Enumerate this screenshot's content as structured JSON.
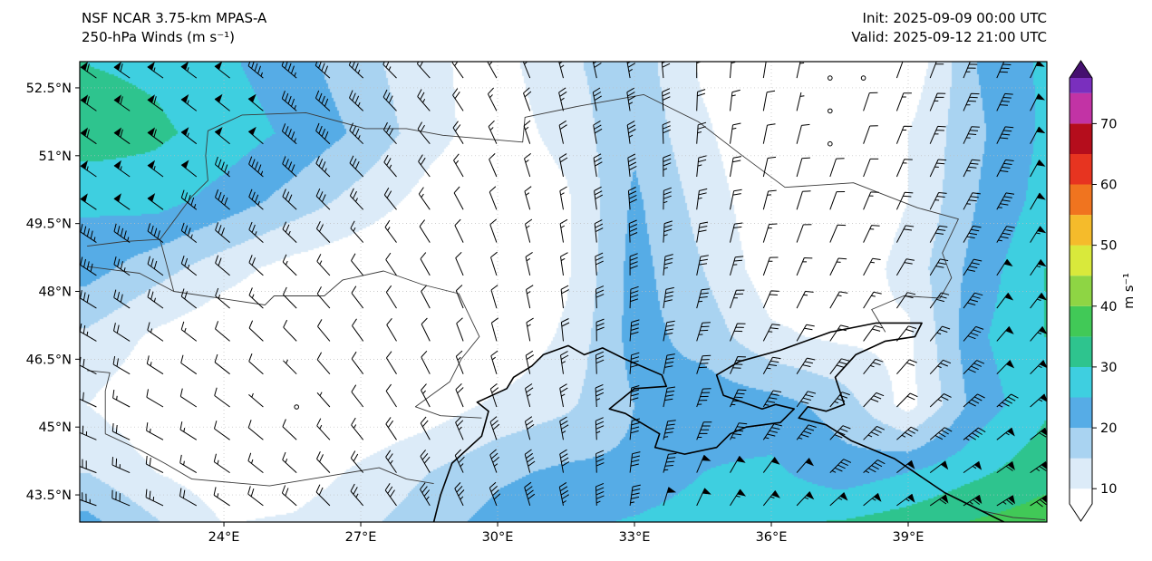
{
  "header": {
    "title_line1": "NSF NCAR 3.75-km MPAS-A",
    "title_line2": "250-hPa Winds (m s⁻¹)",
    "init_label": "Init: 2025-09-09 00:00 UTC",
    "valid_label": "Valid: 2025-09-12 21:00 UTC"
  },
  "axes": {
    "lon_range": [
      20.84,
      42.04
    ],
    "lat_range": [
      42.9,
      53.08
    ],
    "x_ticks": [
      {
        "v": 24,
        "label": "24°E"
      },
      {
        "v": 27,
        "label": "27°E"
      },
      {
        "v": 30,
        "label": "30°E"
      },
      {
        "v": 33,
        "label": "33°E"
      },
      {
        "v": 36,
        "label": "36°E"
      },
      {
        "v": 39,
        "label": "39°E"
      }
    ],
    "y_ticks": [
      {
        "v": 52.5,
        "label": "52.5°N"
      },
      {
        "v": 51,
        "label": "51°N"
      },
      {
        "v": 49.5,
        "label": "49.5°N"
      },
      {
        "v": 48,
        "label": "48°N"
      },
      {
        "v": 46.5,
        "label": "46.5°N"
      },
      {
        "v": 45,
        "label": "45°N"
      },
      {
        "v": 43.5,
        "label": "43.5°N"
      }
    ]
  },
  "colorbar": {
    "label": "m s⁻¹",
    "ticks": [
      10,
      20,
      30,
      40,
      50,
      60,
      70
    ],
    "value_range": [
      7.5,
      77.5
    ],
    "bands": [
      [
        7.5,
        10,
        "#ffffff"
      ],
      [
        10,
        15,
        "#dcebf8"
      ],
      [
        15,
        20,
        "#a9d3f1"
      ],
      [
        20,
        25,
        "#56ace6"
      ],
      [
        25,
        30,
        "#3ecfe0"
      ],
      [
        30,
        35,
        "#2ec48e"
      ],
      [
        35,
        40,
        "#41c957"
      ],
      [
        40,
        45,
        "#8ed544"
      ],
      [
        45,
        50,
        "#d9e93b"
      ],
      [
        50,
        55,
        "#f5bb2b"
      ],
      [
        55,
        60,
        "#f0741f"
      ],
      [
        60,
        65,
        "#e73420"
      ],
      [
        65,
        70,
        "#b50d1c"
      ],
      [
        70,
        75,
        "#c233a5"
      ],
      [
        75,
        77.5,
        "#7a2fbe"
      ]
    ],
    "over_color": "#45106f",
    "under_color": "#ffffff"
  },
  "chart_data": {
    "type": "heatmap",
    "variable": "250-hPa wind speed with wind barbs",
    "units": "m s⁻¹",
    "model": "NSF NCAR 3.75-km MPAS-A",
    "init": "2025-09-09 00:00 UTC",
    "valid": "2025-09-12 21:00 UTC",
    "lon_ticks": [
      24,
      27,
      30,
      33,
      36,
      39
    ],
    "lat_ticks": [
      43.5,
      45,
      46.5,
      48,
      49.5,
      51,
      52.5
    ],
    "colorbar_ticks": [
      10,
      20,
      30,
      40,
      50,
      60,
      70
    ],
    "fill_levels": [
      10,
      15,
      20,
      25,
      30,
      35,
      40,
      45
    ],
    "grid": {
      "lons": [
        21,
        22.5,
        24,
        25.5,
        27,
        28.5,
        30,
        31.5,
        33,
        34.5,
        36,
        37.5,
        39,
        40.5,
        42
      ],
      "lats": [
        53,
        51.5,
        50,
        48.5,
        47,
        45.5,
        44,
        42.8
      ],
      "speed_ms": [
        [
          30,
          29,
          26,
          22,
          17,
          11,
          8,
          14,
          18,
          9,
          5,
          0,
          6,
          20,
          26
        ],
        [
          33,
          31,
          28,
          24,
          19,
          12,
          7,
          12,
          19,
          11,
          5,
          2,
          10,
          19,
          26
        ],
        [
          26,
          27,
          23,
          18,
          13,
          8,
          5,
          9,
          21,
          13,
          6,
          5,
          10,
          20,
          27
        ],
        [
          22,
          17,
          12,
          8,
          6,
          5,
          4,
          9,
          22,
          15,
          7,
          6,
          12,
          22,
          30
        ],
        [
          14,
          9,
          6,
          5,
          4,
          4,
          5,
          11,
          22,
          18,
          11,
          9,
          9,
          24,
          30
        ],
        [
          10,
          6,
          5,
          2,
          5,
          7,
          11,
          14,
          20,
          23,
          22,
          18,
          8,
          22,
          29
        ],
        [
          15,
          10,
          7,
          7,
          11,
          15,
          19,
          21,
          21,
          25,
          26,
          22,
          25,
          29,
          33
        ],
        [
          22,
          16,
          10,
          11,
          14,
          18,
          22,
          24,
          26,
          28,
          30,
          31,
          33,
          36,
          38
        ]
      ],
      "wind_from_deg": [
        [
          305,
          305,
          308,
          310,
          312,
          318,
          330,
          345,
          350,
          360,
          370,
          375,
          380,
          382,
          385
        ],
        [
          305,
          306,
          309,
          311,
          314,
          320,
          335,
          348,
          352,
          365,
          372,
          378,
          382,
          385,
          388
        ],
        [
          304,
          306,
          310,
          313,
          316,
          324,
          338,
          350,
          355,
          368,
          375,
          380,
          385,
          388,
          390
        ],
        [
          303,
          306,
          310,
          314,
          320,
          330,
          342,
          352,
          360,
          372,
          380,
          386,
          390,
          392,
          394
        ],
        [
          300,
          305,
          310,
          316,
          324,
          334,
          345,
          355,
          365,
          378,
          388,
          394,
          398,
          400,
          400
        ],
        [
          295,
          300,
          306,
          314,
          322,
          332,
          342,
          350,
          365,
          380,
          392,
          400,
          405,
          408,
          408
        ],
        [
          290,
          296,
          304,
          312,
          320,
          330,
          340,
          350,
          368,
          385,
          398,
          406,
          412,
          415,
          415
        ],
        [
          288,
          294,
          302,
          310,
          318,
          328,
          338,
          348,
          370,
          388,
          402,
          410,
          416,
          420,
          420
        ]
      ]
    }
  },
  "map": {
    "coastline": [
      [
        28.6,
        42.9
      ],
      [
        28.75,
        43.5
      ],
      [
        29.0,
        44.2
      ],
      [
        29.65,
        44.8
      ],
      [
        29.8,
        45.35
      ],
      [
        29.55,
        45.55
      ],
      [
        30.2,
        45.85
      ],
      [
        30.35,
        46.1
      ],
      [
        30.75,
        46.35
      ],
      [
        31.0,
        46.6
      ],
      [
        31.55,
        46.8
      ],
      [
        31.9,
        46.6
      ],
      [
        32.3,
        46.75
      ],
      [
        32.8,
        46.5
      ],
      [
        33.6,
        46.15
      ],
      [
        33.7,
        45.9
      ],
      [
        33.0,
        45.85
      ],
      [
        32.45,
        45.4
      ],
      [
        32.8,
        45.3
      ],
      [
        33.55,
        44.85
      ],
      [
        33.45,
        44.55
      ],
      [
        34.1,
        44.4
      ],
      [
        34.8,
        44.55
      ],
      [
        35.1,
        44.85
      ],
      [
        35.45,
        45.0
      ],
      [
        36.2,
        45.1
      ],
      [
        36.5,
        45.4
      ],
      [
        36.1,
        45.5
      ],
      [
        35.8,
        45.4
      ],
      [
        34.95,
        45.7
      ],
      [
        34.8,
        46.15
      ],
      [
        35.3,
        46.45
      ],
      [
        36.2,
        46.7
      ],
      [
        37.3,
        47.1
      ],
      [
        38.3,
        47.3
      ],
      [
        39.3,
        47.3
      ],
      [
        39.15,
        47.0
      ],
      [
        38.5,
        46.9
      ],
      [
        37.85,
        46.6
      ],
      [
        37.4,
        46.1
      ],
      [
        37.6,
        45.5
      ],
      [
        37.2,
        45.35
      ],
      [
        36.8,
        45.45
      ],
      [
        36.6,
        45.2
      ],
      [
        37.2,
        45.05
      ],
      [
        37.75,
        44.7
      ],
      [
        38.7,
        44.3
      ],
      [
        39.8,
        43.55
      ],
      [
        40.5,
        43.2
      ],
      [
        41.1,
        42.9
      ]
    ],
    "borders": [
      [
        [
          22.6,
          49.15
        ],
        [
          23.3,
          50.1
        ],
        [
          23.65,
          50.45
        ],
        [
          23.6,
          51.0
        ],
        [
          23.65,
          51.55
        ],
        [
          24.4,
          51.9
        ],
        [
          25.8,
          51.95
        ],
        [
          27.1,
          51.6
        ],
        [
          28.0,
          51.6
        ],
        [
          28.8,
          51.45
        ],
        [
          30.55,
          51.3
        ],
        [
          30.6,
          51.85
        ],
        [
          31.8,
          52.1
        ],
        [
          33.2,
          52.35
        ],
        [
          34.4,
          51.75
        ],
        [
          35.3,
          51.05
        ],
        [
          36.3,
          50.3
        ],
        [
          37.8,
          50.4
        ],
        [
          39.2,
          49.85
        ],
        [
          40.1,
          49.6
        ],
        [
          39.75,
          48.85
        ],
        [
          39.95,
          48.3
        ],
        [
          39.7,
          47.85
        ],
        [
          38.9,
          47.9
        ],
        [
          38.2,
          47.6
        ],
        [
          38.5,
          47.1
        ]
      ],
      [
        [
          26.6,
          48.25
        ],
        [
          27.5,
          48.45
        ],
        [
          28.35,
          48.15
        ],
        [
          29.15,
          47.95
        ],
        [
          29.6,
          47.0
        ],
        [
          29.2,
          46.5
        ],
        [
          28.95,
          46.0
        ],
        [
          28.2,
          45.45
        ],
        [
          28.75,
          45.25
        ],
        [
          29.65,
          45.2
        ]
      ],
      [
        [
          22.6,
          49.15
        ],
        [
          22.9,
          48.0
        ],
        [
          24.9,
          47.7
        ],
        [
          25.1,
          47.9
        ],
        [
          26.2,
          47.9
        ],
        [
          26.6,
          48.25
        ]
      ],
      [
        [
          21.0,
          49.0
        ],
        [
          21.8,
          49.1
        ],
        [
          22.6,
          49.15
        ]
      ],
      [
        [
          21.0,
          48.55
        ],
        [
          22.15,
          48.4
        ],
        [
          22.9,
          48.0
        ]
      ],
      [
        [
          21.4,
          44.85
        ],
        [
          22.15,
          44.5
        ],
        [
          22.7,
          44.2
        ],
        [
          23.3,
          43.85
        ],
        [
          25.0,
          43.7
        ],
        [
          26.5,
          43.95
        ],
        [
          27.4,
          44.1
        ],
        [
          28.0,
          43.85
        ],
        [
          28.6,
          43.75
        ]
      ],
      [
        [
          21.0,
          46.25
        ],
        [
          21.5,
          46.2
        ],
        [
          21.4,
          45.8
        ],
        [
          21.4,
          44.85
        ]
      ],
      [
        [
          40.6,
          43.15
        ],
        [
          41.3,
          43.0
        ],
        [
          42.0,
          42.95
        ]
      ]
    ]
  }
}
